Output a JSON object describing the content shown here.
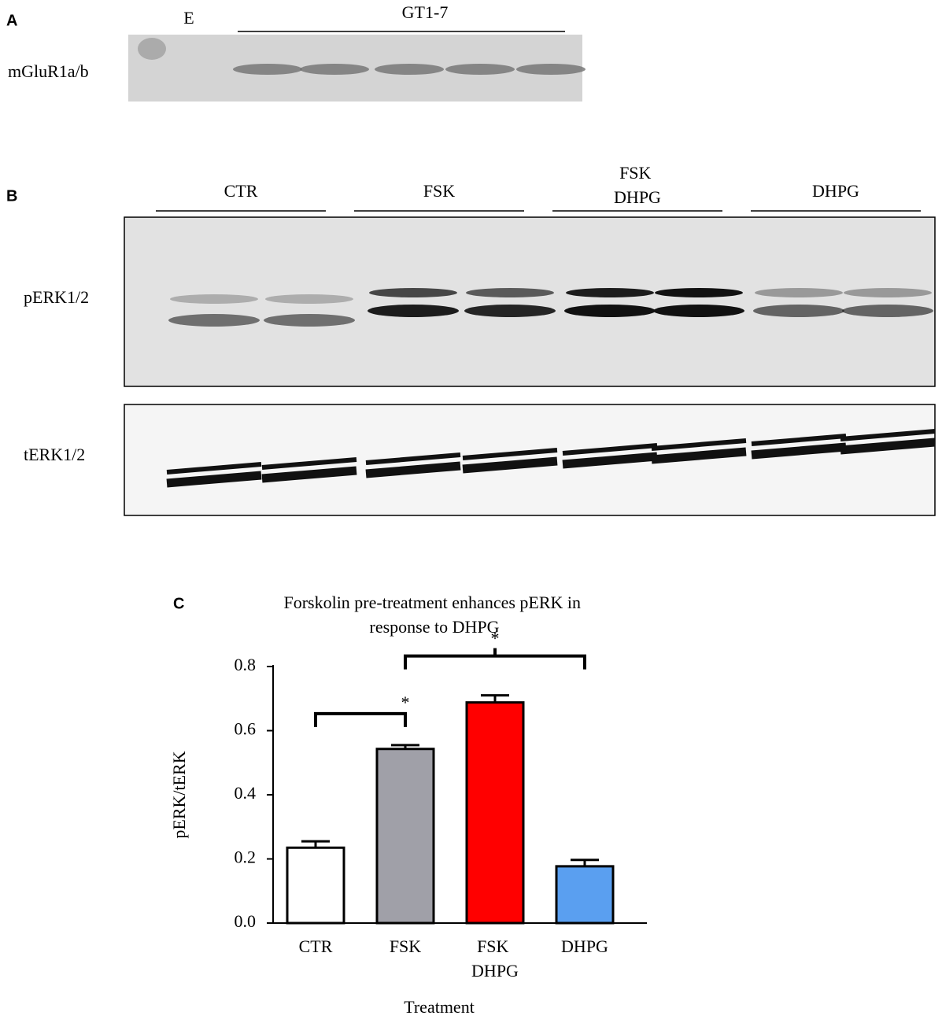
{
  "panel_a": {
    "label": "A",
    "lane_label": "E",
    "group_label": "GT1-7",
    "row_label": "mGluR1a/b"
  },
  "panel_b": {
    "label": "B",
    "groups": [
      "CTR",
      "FSK",
      "FSK DHPG",
      "DHPG"
    ],
    "row_labels": [
      "pERK1/2",
      "tERK1/2"
    ]
  },
  "chart_data": {
    "type": "bar",
    "panel_label": "C",
    "title": "Forskolin pre-treatment enhances pERK in response to DHPG",
    "x_label": "Treatment",
    "y_label": "pERK/tERK",
    "categories": [
      "CTR",
      "FSK",
      "FSK DHPG",
      "DHPG"
    ],
    "values": [
      0.235,
      0.543,
      0.688,
      0.177
    ],
    "errors": [
      0.02,
      0.012,
      0.022,
      0.02
    ],
    "colors": [
      "#ffffff",
      "#a0a0a8",
      "#ff0000",
      "#5a9ff0"
    ],
    "ylim": [
      0,
      0.8
    ],
    "yticks": [
      {
        "value": 0,
        "label": "0.0"
      },
      0.2,
      0.4,
      0.6,
      0.8
    ],
    "annotations": [
      {
        "between": [
          "CTR",
          "FSK"
        ],
        "label": "*"
      },
      {
        "between": [
          "FSK",
          "DHPG"
        ],
        "label": "*"
      }
    ]
  }
}
